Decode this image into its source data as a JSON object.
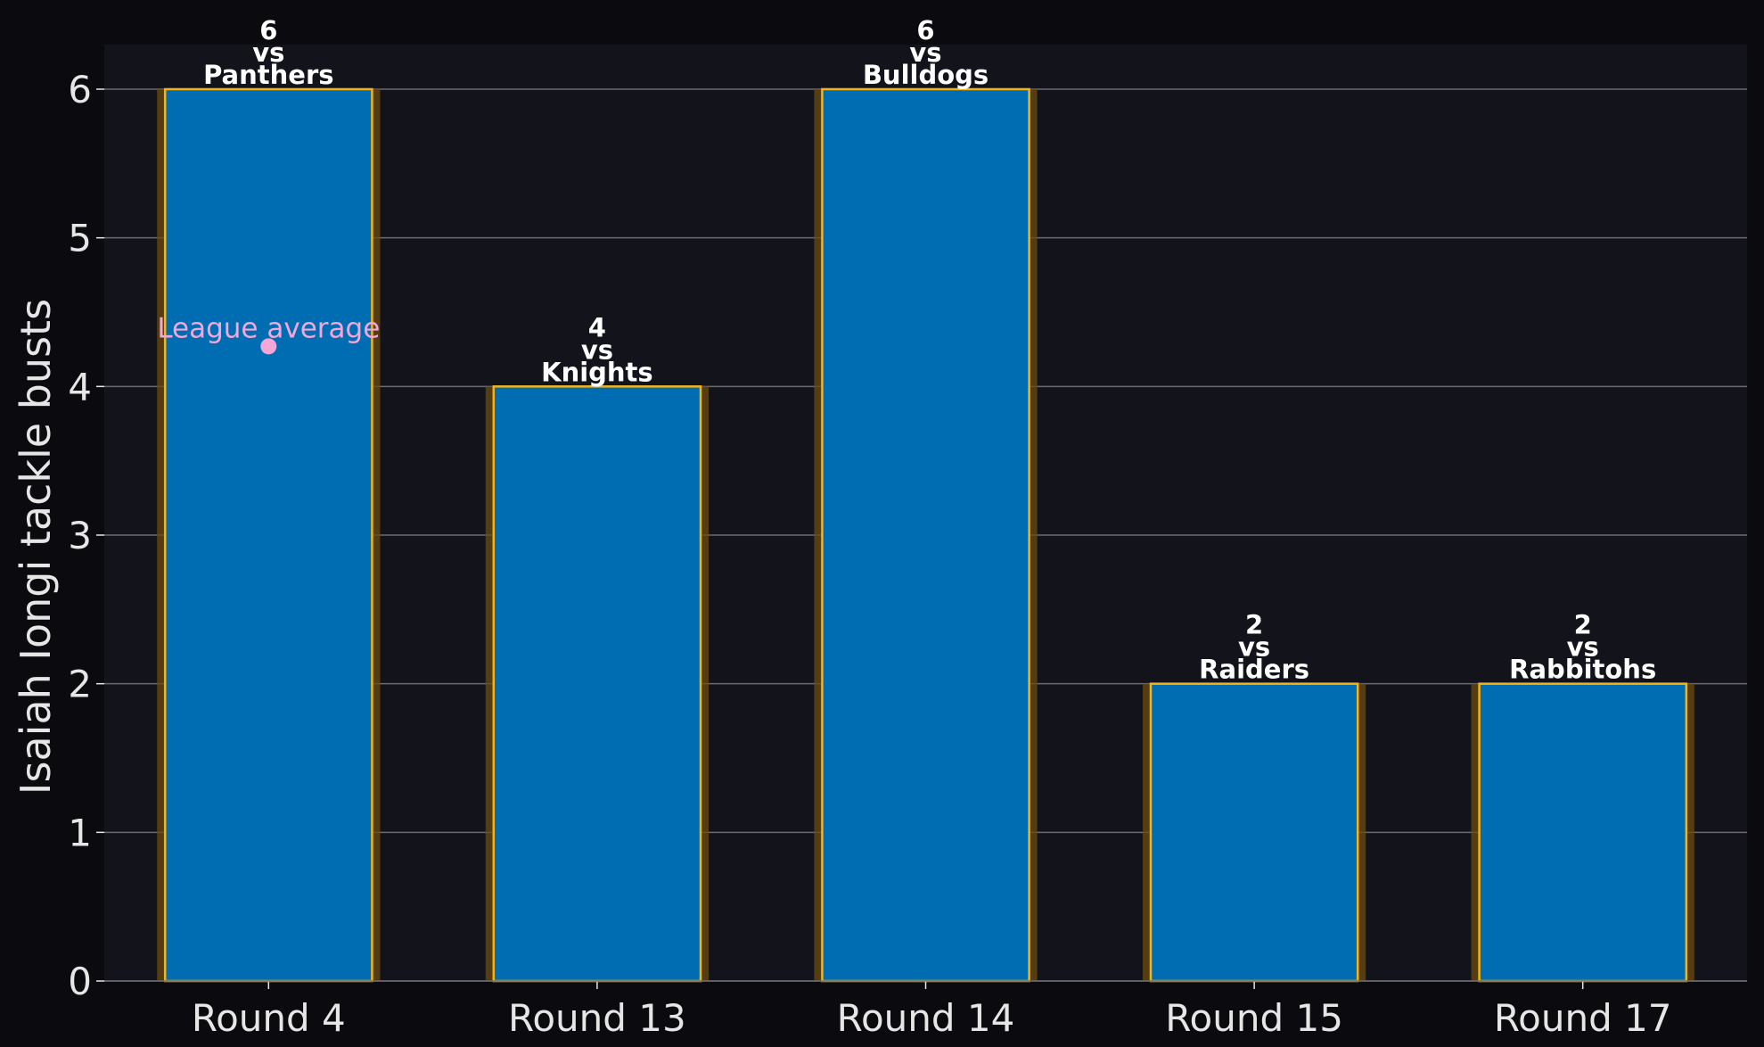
{
  "chart_data": {
    "type": "bar",
    "categories": [
      "Round 4",
      "Round 13",
      "Round 14",
      "Round 15",
      "Round 17"
    ],
    "values": [
      6,
      4,
      6,
      2,
      2
    ],
    "opponents": [
      "Panthers",
      "Knights",
      "Bulldogs",
      "Raiders",
      "Rabbitohs"
    ],
    "vs_word": "vs",
    "title": "",
    "xlabel": "",
    "ylabel": "Isaiah Iongi tackle busts",
    "ylim": [
      0,
      6.3
    ],
    "yticks": [
      0,
      1,
      2,
      3,
      4,
      5,
      6
    ],
    "grid": "horizontal",
    "reference_point": {
      "label": "League average",
      "category": "Round 4",
      "value": 4.27
    },
    "colors": {
      "background": "#0b0b0f",
      "plot_background": "#13141b",
      "bar_fill": "#006db3",
      "bar_edge": "#f5b31a",
      "bar_glow": "#6b4a12",
      "grid": "#6b6b70",
      "text": "#e6e6e6",
      "reference_point": "#f4a6d7"
    }
  }
}
